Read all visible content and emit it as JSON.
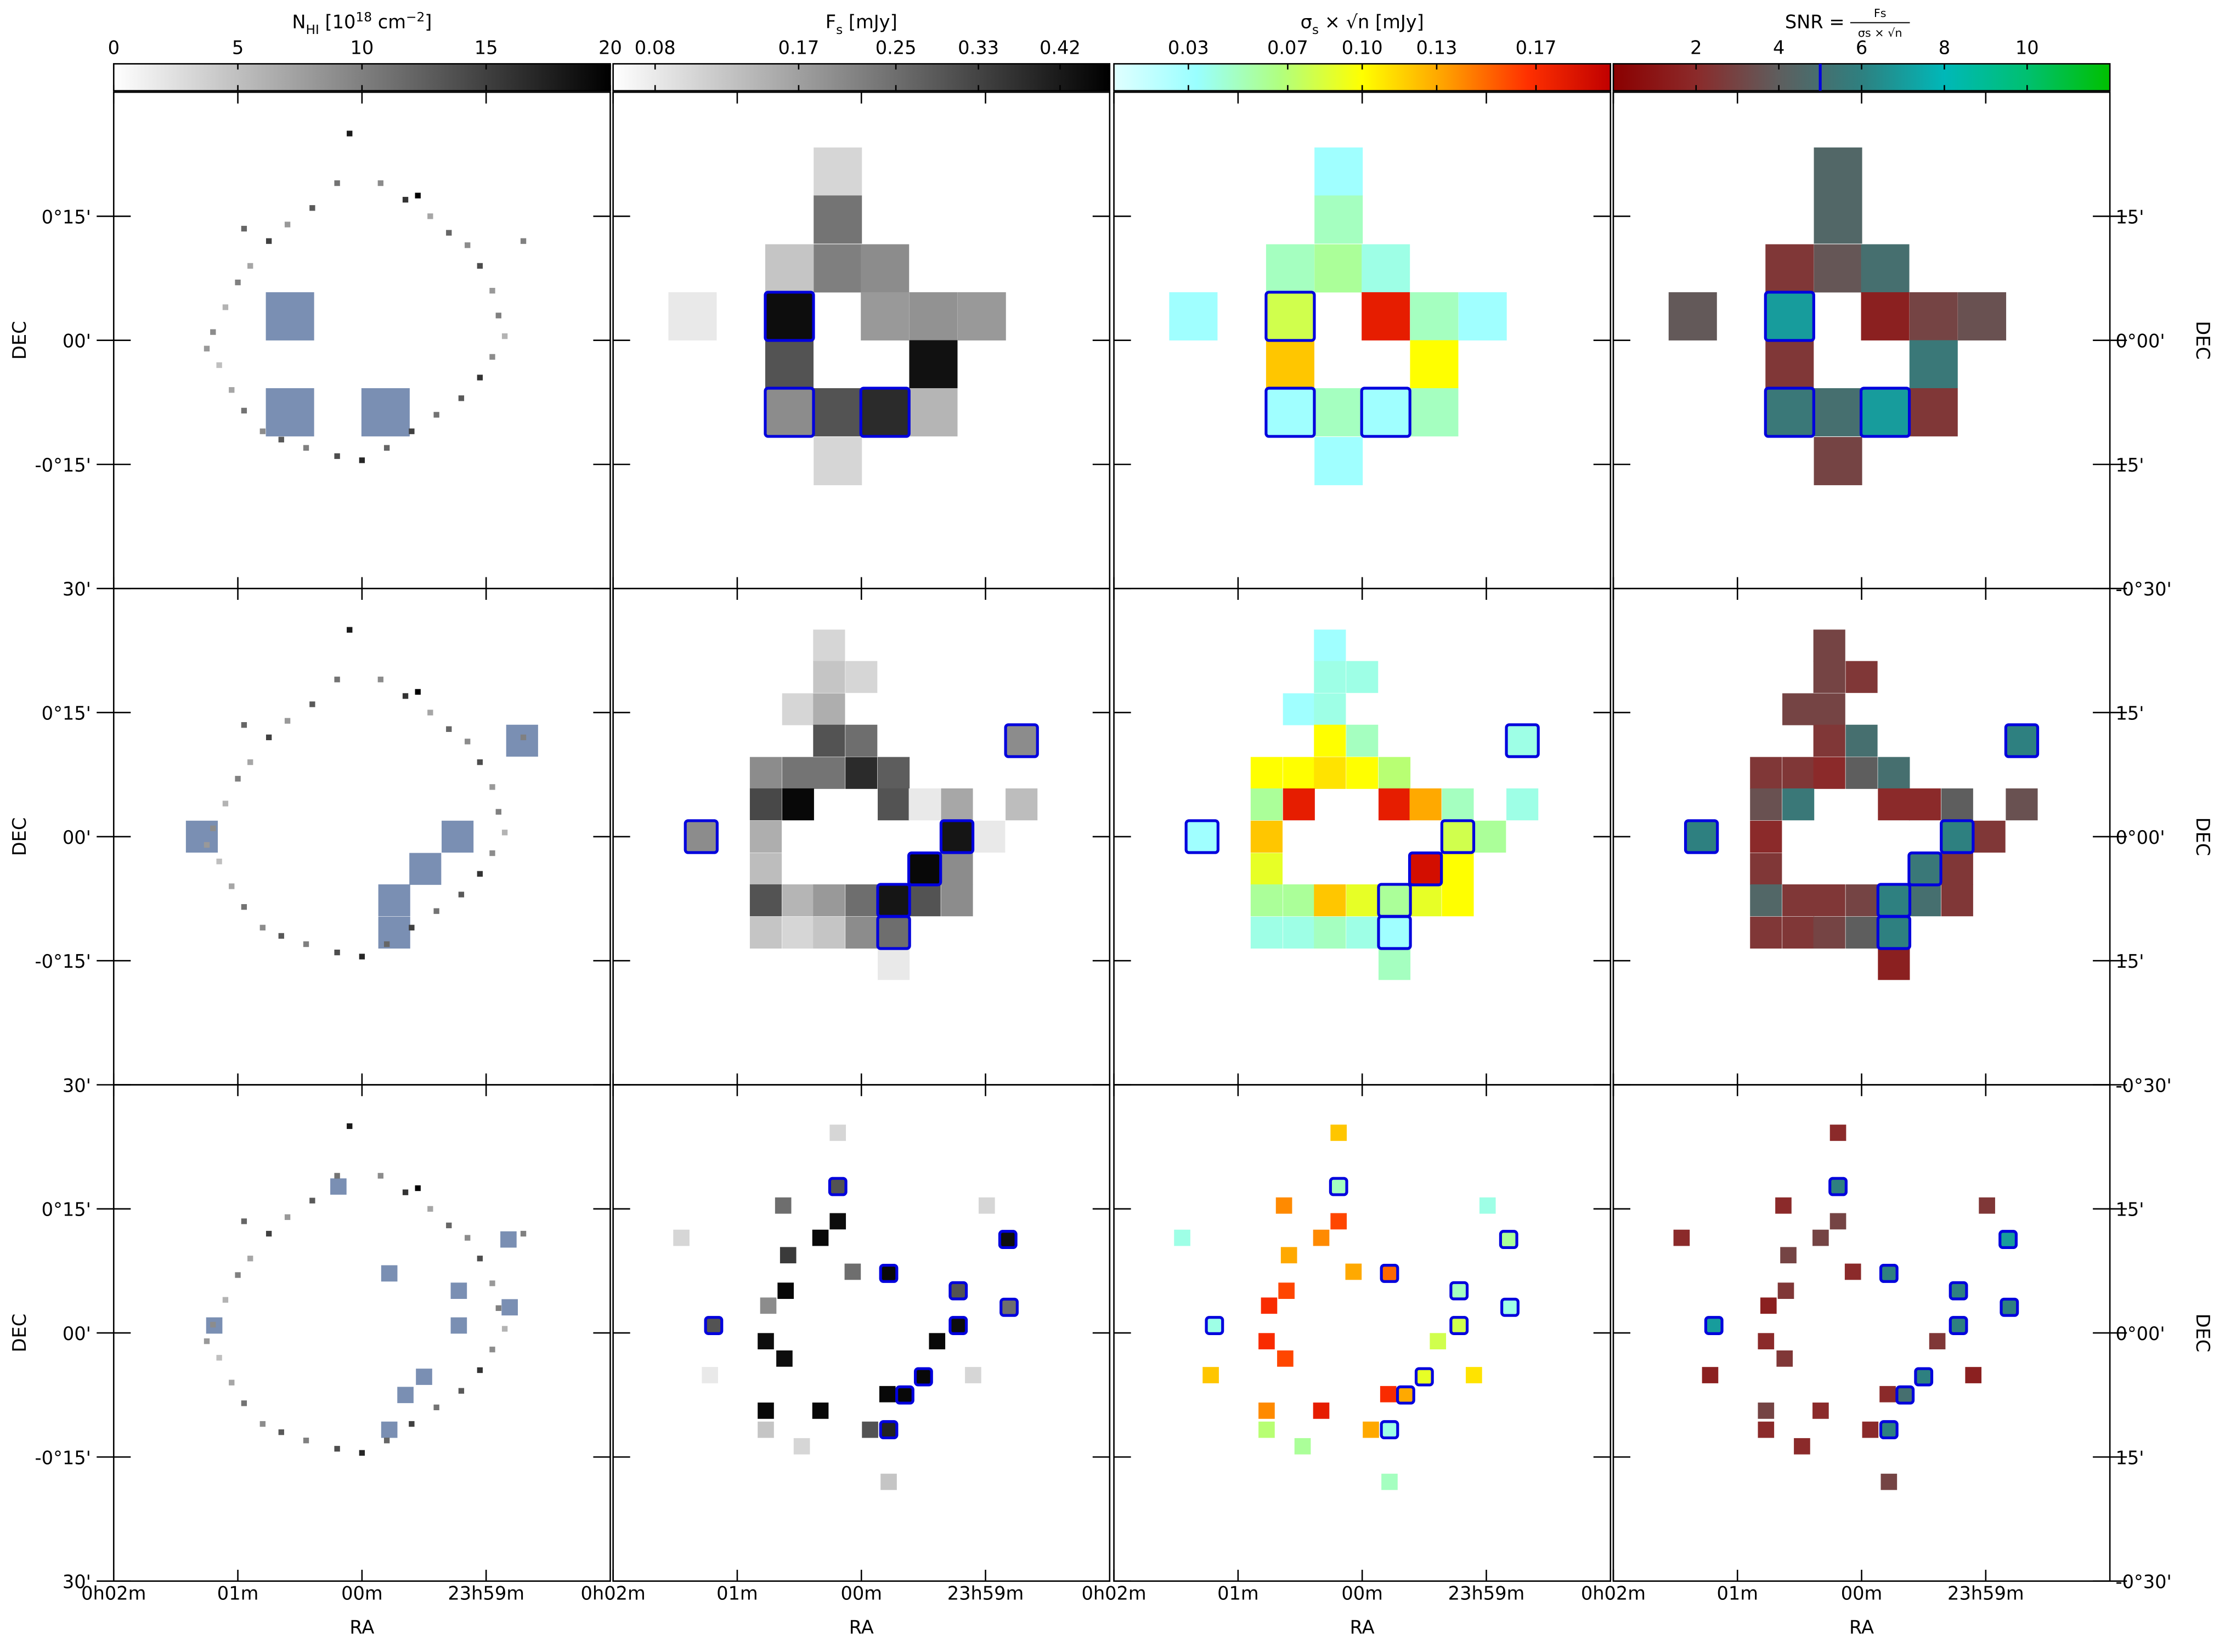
{
  "chart_data": {
    "type": "heatmap",
    "xlabel": "RA",
    "ylabel": "DEC",
    "xlim": [
      2,
      -2
    ],
    "ylim": [
      -30,
      30
    ],
    "y2lim": [
      -30,
      30
    ],
    "xticks": [
      {
        "value": 2,
        "label": "0h02m"
      },
      {
        "value": 1,
        "label": "01m"
      },
      {
        "value": 0,
        "label": "00m"
      },
      {
        "value": -1,
        "label": "23h59m"
      }
    ],
    "yticks": [
      {
        "value": 15,
        "label": "0°15'"
      },
      {
        "value": 0,
        "label": "00'"
      },
      {
        "value": -15,
        "label": "-0°15'"
      },
      {
        "value": -30,
        "label": "30'"
      }
    ],
    "y2ticks": [
      {
        "value": 15,
        "label": "15'"
      },
      {
        "value": 0,
        "label": "0°00'"
      },
      {
        "value": -15,
        "label": "15'"
      },
      {
        "value": -30,
        "label": "-0°30'"
      }
    ],
    "aperture_color": "#0000dd",
    "region_color": "#6b83ab",
    "colorbars": [
      {
        "label": [
          {
            "text": "N"
          },
          {
            "text": "HI",
            "shift": "sub"
          },
          {
            "text": " [10"
          },
          {
            "text": "18",
            "shift": "super"
          },
          {
            "text": " cm"
          },
          {
            "text": "−2",
            "shift": "super"
          },
          {
            "text": "]"
          }
        ],
        "lim": [
          0,
          20
        ],
        "ticks": [
          0,
          5,
          10,
          15,
          20
        ],
        "scale": "linear",
        "colors": [
          "#ffffff",
          "#000000"
        ]
      },
      {
        "label": [
          {
            "text": "F"
          },
          {
            "text": "s",
            "shift": "sub"
          },
          {
            "text": " [mJy]"
          }
        ],
        "lim": [
          0.06,
          0.48
        ],
        "ticks": [
          0.08,
          0.17,
          0.25,
          0.33,
          0.42
        ],
        "scale": "sqrt",
        "colors": [
          "#ffffff",
          "#000000"
        ]
      },
      {
        "label": [
          {
            "text": "σ"
          },
          {
            "text": "s",
            "shift": "sub"
          },
          {
            "text": " × √n [mJy]"
          }
        ],
        "lim": [
          0,
          0.2
        ],
        "ticks": [
          0.03,
          0.07,
          {
            "value": 0.1,
            "label": "0.10"
          },
          0.13,
          0.17
        ],
        "scale": "linear",
        "colors": [
          "#e0ffff",
          "#99ffff",
          "#b0ff80",
          "#ffff00",
          "#ffa000",
          "#ff3000",
          "#c00000"
        ]
      },
      {
        "label": [
          {
            "text": "SNR ="
          },
          {
            "text": "Fs",
            "shift": "num"
          },
          {
            "text": "σs × √n",
            "shift": "den"
          }
        ],
        "lim": [
          0,
          12
        ],
        "ticks": [
          2,
          4,
          6,
          8,
          10
        ],
        "scale": "linear",
        "threshold": 5,
        "threshold_color": "#0000dd",
        "colors": [
          "#8b0000",
          "#8b2a2a",
          "#5e5e5e",
          "#2e8080",
          "#00b8b8",
          "#00c070",
          "#00c000"
        ]
      }
    ],
    "nhi": {
      "ra": [
        -1.15,
        -1.1,
        -1.05,
        -0.95,
        -0.85,
        -0.7,
        -0.55,
        -0.35,
        -0.15,
        0.1,
        0.2,
        0.4,
        0.6,
        0.75,
        0.9,
        1.0,
        1.1,
        1.2,
        1.25,
        1.15,
        1.05,
        0.95,
        0.8,
        0.65,
        0.45,
        0.2,
        0,
        -0.2,
        -0.4,
        -0.6,
        -0.8,
        -0.95,
        -1.05,
        -0.45,
        0.95,
        -1.3
      ],
      "dec": [
        0.5,
        3,
        6,
        9,
        11.5,
        13,
        15,
        17,
        19,
        25,
        19,
        16,
        14,
        12,
        9,
        7,
        4,
        1,
        -1,
        -3,
        -6,
        -8.5,
        -11,
        -12,
        -13,
        -14,
        -14.5,
        -13,
        -11,
        -9,
        -7,
        -4.5,
        -2,
        17.5,
        13.5,
        12
      ],
      "values": [
        6,
        10,
        8,
        14,
        9,
        12,
        7,
        16,
        9,
        18,
        11,
        13,
        8,
        15,
        7,
        10,
        6,
        9,
        8,
        5,
        7,
        11,
        9,
        13,
        10,
        14,
        17,
        12,
        15,
        11,
        13,
        16,
        9,
        20,
        12,
        10
      ]
    },
    "rows": [
      {
        "cell_size": [
          0.389,
          5.83
        ],
        "apertures": {
          "ra": [
            0.58,
            0.58,
            -0.19
          ],
          "dec": [
            2.9,
            -8.7,
            -8.7
          ]
        },
        "cells": {
          "ra": [
            0.19,
            0.19,
            0.58,
            0.19,
            -0.19,
            1.36,
            0.58,
            -0.19,
            -0.58,
            -0.97,
            0.58,
            -0.58,
            0.58,
            0.19,
            -0.19,
            -0.58,
            0.19
          ],
          "dec": [
            20.4,
            14.6,
            8.7,
            8.7,
            8.7,
            2.9,
            2.9,
            2.9,
            2.9,
            2.9,
            -2.9,
            -2.9,
            -8.7,
            -8.7,
            -8.7,
            -8.7,
            -14.6
          ],
          "fs": [
            0.1,
            0.24,
            0.12,
            0.22,
            0.2,
            0.08,
            0.45,
            0.18,
            0.19,
            0.18,
            0.3,
            0.44,
            0.2,
            0.3,
            0.38,
            0.14,
            0.1
          ],
          "sigma": [
            0.03,
            0.05,
            0.05,
            0.06,
            0.04,
            0.03,
            0.08,
            0.18,
            0.05,
            0.03,
            0.12,
            0.1,
            0.03,
            0.05,
            0.03,
            0.05,
            0.03
          ],
          "snr": [
            4.5,
            4.5,
            2.5,
            3.7,
            5,
            3.8,
            7,
            1.5,
            3,
            3.5,
            2.5,
            5.5,
            5.5,
            5,
            7,
            2.5,
            3
          ]
        }
      },
      {
        "cell_size": [
          0.257,
          3.86
        ],
        "apertures": {
          "ra": [
            1.29,
            -1.29,
            -0.77,
            -0.51,
            -0.26,
            -0.26
          ],
          "dec": [
            0,
            11.6,
            0,
            -3.9,
            -7.7,
            -11.6
          ]
        },
        "cells": {
          "ra": [
            0.26,
            0.26,
            0,
            0.51,
            0.26,
            0.26,
            0,
            -1.29,
            0.77,
            0.51,
            0.26,
            0,
            -0.26,
            0.77,
            0.51,
            -0.26,
            -0.51,
            -0.77,
            -1.29,
            1.29,
            0.77,
            -0.77,
            -1.03,
            0.77,
            -0.51,
            -0.77,
            0.77,
            0.51,
            0.26,
            0,
            -0.26,
            -0.51,
            -0.77,
            0.77,
            0.51,
            0.26,
            0,
            -0.26,
            -0.26
          ],
          "dec": [
            23.1,
            19.3,
            19.3,
            15.4,
            15.4,
            11.6,
            11.6,
            11.6,
            7.7,
            7.7,
            7.7,
            7.7,
            7.7,
            3.9,
            3.9,
            3.9,
            3.9,
            3.9,
            3.9,
            0,
            0,
            0,
            0,
            -3.9,
            -3.9,
            -3.9,
            -7.7,
            -7.7,
            -7.7,
            -7.7,
            -7.7,
            -7.7,
            -7.7,
            -11.6,
            -11.6,
            -11.6,
            -11.6,
            -11.6,
            -15.4
          ],
          "fs": [
            0.1,
            0.12,
            0.1,
            0.1,
            0.15,
            0.3,
            0.25,
            0.2,
            0.2,
            0.24,
            0.24,
            0.38,
            0.28,
            0.32,
            0.46,
            0.3,
            0.08,
            0.16,
            0.13,
            0.2,
            0.15,
            0.43,
            0.08,
            0.13,
            0.46,
            0.2,
            0.3,
            0.14,
            0.18,
            0.25,
            0.43,
            0.3,
            0.2,
            0.12,
            0.1,
            0.12,
            0.2,
            0.25,
            0.08
          ],
          "sigma": [
            0.03,
            0.04,
            0.04,
            0.03,
            0.04,
            0.1,
            0.05,
            0.04,
            0.1,
            0.1,
            0.11,
            0.1,
            0.07,
            0.06,
            0.18,
            0.18,
            0.13,
            0.05,
            0.04,
            0.03,
            0.12,
            0.08,
            0.06,
            0.09,
            0.19,
            0.1,
            0.06,
            0.06,
            0.12,
            0.09,
            0.06,
            0.09,
            0.1,
            0.04,
            0.04,
            0.05,
            0.04,
            0.03,
            0.05
          ],
          "snr": [
            3,
            3,
            2.5,
            3,
            3,
            2.5,
            5,
            6,
            2.5,
            2.5,
            2,
            4,
            5,
            3.5,
            5.5,
            2,
            2,
            4,
            3.5,
            6,
            2,
            6,
            2.5,
            2.5,
            5.5,
            2.5,
            4.5,
            2.5,
            2.5,
            3,
            6,
            5,
            2.5,
            2.5,
            2.5,
            3,
            4,
            6,
            1.5
          ]
        }
      },
      {
        "cell_size": [
          0.131,
          1.97
        ],
        "apertures": {
          "ra": [
            0.19,
            -1.18,
            -0.22,
            -0.78,
            -1.19,
            1.19,
            -0.78,
            -0.5,
            -0.35,
            -0.22
          ],
          "dec": [
            17.7,
            11.3,
            7.2,
            5.1,
            3.1,
            0.9,
            0.9,
            -5.3,
            -7.5,
            -11.7
          ]
        },
        "cells": {
          "ra": [
            0.19,
            0.19,
            0.63,
            0.19,
            -1.01,
            1.45,
            0.33,
            -1.18,
            0.59,
            -0.22,
            0.61,
            -0.78,
            -1.19,
            0.75,
            1.19,
            -0.78,
            0.77,
            -0.61,
            0.62,
            -0.5,
            1.22,
            -0.35,
            -0.21,
            0.77,
            0.33,
            -0.22,
            0.77,
            -0.07,
            0.48,
            -0.22,
            -0.9,
            0.07
          ],
          "dec": [
            24.2,
            17.7,
            15.4,
            13.5,
            15.4,
            11.5,
            11.5,
            11.3,
            9.4,
            7.2,
            5.1,
            5.1,
            3.1,
            3.3,
            0.9,
            0.9,
            -1.0,
            -1.0,
            -3.1,
            -5.3,
            -5.1,
            -7.5,
            -7.4,
            -9.4,
            -9.4,
            -11.7,
            -11.7,
            -11.7,
            -13.7,
            -18.0,
            -5.1,
            7.4
          ],
          "fs": [
            0.1,
            0.3,
            0.25,
            0.45,
            0.1,
            0.1,
            0.46,
            0.45,
            0.35,
            0.46,
            0.46,
            0.3,
            0.25,
            0.2,
            0.3,
            0.45,
            0.45,
            0.46,
            0.45,
            0.46,
            0.08,
            0.46,
            0.46,
            0.46,
            0.46,
            0.4,
            0.12,
            0.3,
            0.1,
            0.12,
            0.1,
            0.25
          ],
          "sigma": [
            0.12,
            0.05,
            0.14,
            0.16,
            0.04,
            0.04,
            0.14,
            0.06,
            0.13,
            0.15,
            0.16,
            0.05,
            0.04,
            0.17,
            0.04,
            0.08,
            0.17,
            0.08,
            0.16,
            0.09,
            0.12,
            0.13,
            0.17,
            0.14,
            0.18,
            0.04,
            0.07,
            0.13,
            0.06,
            0.05,
            0.11,
            0.13
          ],
          "snr": [
            2,
            6,
            2,
            3,
            2.5,
            2,
            3,
            7,
            3,
            6,
            2.5,
            6,
            6,
            1.5,
            7,
            6,
            2,
            2.5,
            2.5,
            6,
            1.5,
            5,
            2,
            3,
            2,
            6,
            2,
            2,
            2,
            3,
            1.5,
            2
          ]
        }
      }
    ]
  }
}
